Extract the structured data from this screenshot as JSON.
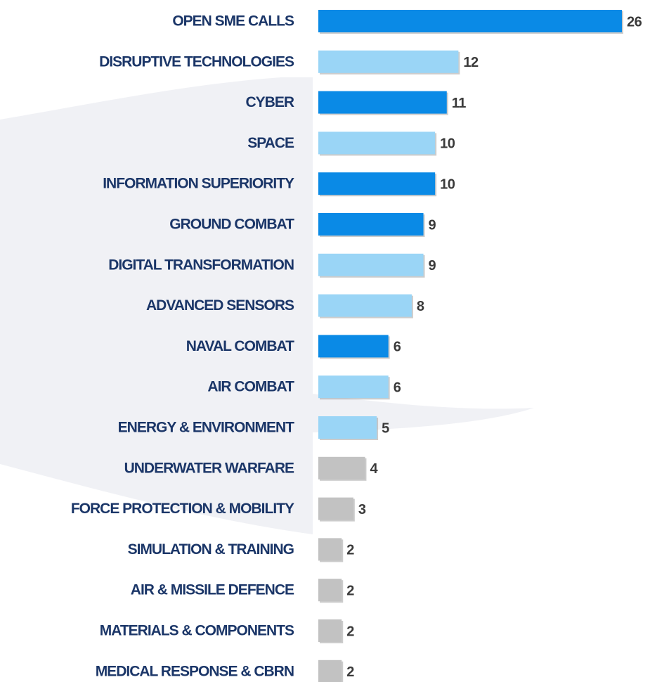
{
  "chart_data": {
    "type": "bar",
    "orientation": "horizontal",
    "categories": [
      "OPEN SME CALLS",
      "DISRUPTIVE TECHNOLOGIES",
      "CYBER",
      "SPACE",
      "INFORMATION SUPERIORITY",
      "GROUND COMBAT",
      "DIGITAL TRANSFORMATION",
      "ADVANCED SENSORS",
      "NAVAL COMBAT",
      "AIR COMBAT",
      "ENERGY & ENVIRONMENT",
      "UNDERWATER WARFARE",
      "FORCE PROTECTION & MOBILITY",
      "SIMULATION & TRAINING",
      "AIR & MISSILE DEFENCE",
      "MATERIALS & COMPONENTS",
      "MEDICAL RESPONSE & CBRN"
    ],
    "values": [
      26,
      12,
      11,
      10,
      10,
      9,
      9,
      8,
      6,
      6,
      5,
      4,
      3,
      2,
      2,
      2,
      2
    ],
    "colors": [
      "#0a8ae6",
      "#9ad5f6",
      "#0a8ae6",
      "#9ad5f6",
      "#0a8ae6",
      "#0a8ae6",
      "#9ad5f6",
      "#9ad5f6",
      "#0a8ae6",
      "#9ad5f6",
      "#9ad5f6",
      "#c2c2c2",
      "#c2c2c2",
      "#c2c2c2",
      "#c2c2c2",
      "#c2c2c2",
      "#c2c2c2"
    ]
  }
}
